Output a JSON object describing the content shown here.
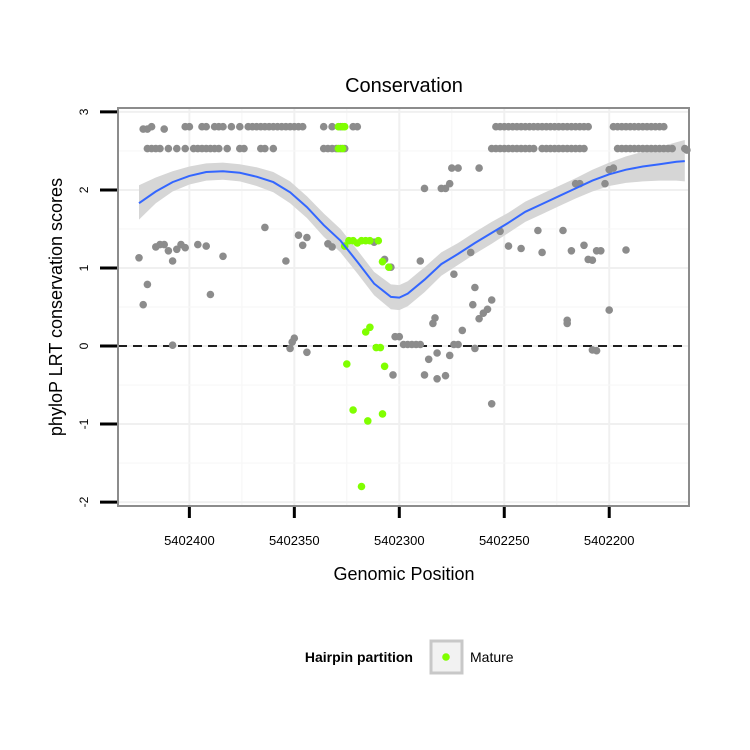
{
  "chart_data": {
    "type": "scatter",
    "title": "Conservation",
    "xlabel": "Genomic Position",
    "ylabel": "phyloP LRT conservation scores",
    "x_reversed": true,
    "xlim": [
      5402162,
      5402434
    ],
    "ylim": [
      -2.05,
      3.05
    ],
    "x_ticks": [
      5402400,
      5402350,
      5402300,
      5402250,
      5402200
    ],
    "y_ticks": [
      -2,
      -1,
      0,
      1,
      2,
      3
    ],
    "grid": true,
    "reference_line": {
      "y": 0,
      "style": "dashed"
    },
    "legend": {
      "title": "Hairpin partition",
      "position": "bottom",
      "entries": [
        {
          "label": "Mature",
          "color": "#80ff00"
        }
      ]
    },
    "colors": {
      "other": "#8c8c8c",
      "mature": "#80ff00",
      "smooth": "#3366ff",
      "ribbon": "#d6d6d6"
    },
    "series": [
      {
        "name": "Other",
        "points": [
          [
            5402422,
            2.78
          ],
          [
            5402420,
            2.78
          ],
          [
            5402418,
            2.81
          ],
          [
            5402412,
            2.78
          ],
          [
            5402402,
            2.81
          ],
          [
            5402400,
            2.81
          ],
          [
            5402394,
            2.81
          ],
          [
            5402392,
            2.81
          ],
          [
            5402388,
            2.81
          ],
          [
            5402386,
            2.81
          ],
          [
            5402384,
            2.81
          ],
          [
            5402380,
            2.81
          ],
          [
            5402376,
            2.81
          ],
          [
            5402372,
            2.81
          ],
          [
            5402370,
            2.81
          ],
          [
            5402368,
            2.81
          ],
          [
            5402366,
            2.81
          ],
          [
            5402364,
            2.81
          ],
          [
            5402362,
            2.81
          ],
          [
            5402360,
            2.81
          ],
          [
            5402358,
            2.81
          ],
          [
            5402356,
            2.81
          ],
          [
            5402354,
            2.81
          ],
          [
            5402352,
            2.81
          ],
          [
            5402350,
            2.81
          ],
          [
            5402348,
            2.81
          ],
          [
            5402346,
            2.81
          ],
          [
            5402336,
            2.81
          ],
          [
            5402332,
            2.81
          ],
          [
            5402328,
            2.81
          ],
          [
            5402322,
            2.81
          ],
          [
            5402320,
            2.81
          ],
          [
            5402420,
            2.53
          ],
          [
            5402418,
            2.53
          ],
          [
            5402416,
            2.53
          ],
          [
            5402414,
            2.53
          ],
          [
            5402410,
            2.53
          ],
          [
            5402406,
            2.53
          ],
          [
            5402402,
            2.53
          ],
          [
            5402398,
            2.53
          ],
          [
            5402396,
            2.53
          ],
          [
            5402394,
            2.53
          ],
          [
            5402392,
            2.53
          ],
          [
            5402390,
            2.53
          ],
          [
            5402388,
            2.53
          ],
          [
            5402386,
            2.53
          ],
          [
            5402382,
            2.53
          ],
          [
            5402376,
            2.53
          ],
          [
            5402374,
            2.53
          ],
          [
            5402366,
            2.53
          ],
          [
            5402364,
            2.53
          ],
          [
            5402360,
            2.53
          ],
          [
            5402336,
            2.53
          ],
          [
            5402334,
            2.53
          ],
          [
            5402332,
            2.53
          ],
          [
            5402330,
            2.53
          ],
          [
            5402328,
            2.53
          ],
          [
            5402326,
            2.53
          ],
          [
            5402424,
            1.13
          ],
          [
            5402422,
            0.53
          ],
          [
            5402420,
            0.79
          ],
          [
            5402416,
            1.27
          ],
          [
            5402414,
            1.3
          ],
          [
            5402412,
            1.3
          ],
          [
            5402410,
            1.22
          ],
          [
            5402408,
            1.09
          ],
          [
            5402408,
            0.01
          ],
          [
            5402406,
            1.24
          ],
          [
            5402404,
            1.3
          ],
          [
            5402402,
            1.26
          ],
          [
            5402396,
            1.3
          ],
          [
            5402392,
            1.28
          ],
          [
            5402390,
            0.66
          ],
          [
            5402384,
            1.15
          ],
          [
            5402364,
            1.52
          ],
          [
            5402354,
            1.09
          ],
          [
            5402352,
            -0.03
          ],
          [
            5402351,
            0.05
          ],
          [
            5402350,
            0.1
          ],
          [
            5402348,
            1.42
          ],
          [
            5402346,
            1.29
          ],
          [
            5402344,
            1.39
          ],
          [
            5402344,
            -0.08
          ],
          [
            5402334,
            1.31
          ],
          [
            5402332,
            1.27
          ],
          [
            5402312,
            1.33
          ],
          [
            5402307,
            1.11
          ],
          [
            5402304,
            1.01
          ],
          [
            5402302,
            0.12
          ],
          [
            5402300,
            0.12
          ],
          [
            5402298,
            0.02
          ],
          [
            5402296,
            0.02
          ],
          [
            5402294,
            0.02
          ],
          [
            5402292,
            0.02
          ],
          [
            5402290,
            0.02
          ],
          [
            5402303,
            -0.37
          ],
          [
            5402290,
            1.09
          ],
          [
            5402288,
            -0.37
          ],
          [
            5402286,
            -0.17
          ],
          [
            5402284,
            0.29
          ],
          [
            5402283,
            0.36
          ],
          [
            5402282,
            -0.09
          ],
          [
            5402282,
            -0.42
          ],
          [
            5402278,
            -0.38
          ],
          [
            5402276,
            -0.12
          ],
          [
            5402274,
            0.02
          ],
          [
            5402272,
            0.02
          ],
          [
            5402288,
            2.02
          ],
          [
            5402280,
            2.02
          ],
          [
            5402278,
            2.02
          ],
          [
            5402276,
            2.08
          ],
          [
            5402274,
            0.92
          ],
          [
            5402270,
            0.2
          ],
          [
            5402266,
            1.2
          ],
          [
            5402265,
            0.53
          ],
          [
            5402264,
            0.75
          ],
          [
            5402264,
            -0.03
          ],
          [
            5402262,
            0.35
          ],
          [
            5402260,
            0.42
          ],
          [
            5402258,
            0.47
          ],
          [
            5402256,
            0.59
          ],
          [
            5402256,
            -0.74
          ],
          [
            5402252,
            1.47
          ],
          [
            5402275,
            2.28
          ],
          [
            5402272,
            2.28
          ],
          [
            5402262,
            2.28
          ],
          [
            5402254,
            2.81
          ],
          [
            5402252,
            2.81
          ],
          [
            5402250,
            2.81
          ],
          [
            5402248,
            2.81
          ],
          [
            5402246,
            2.81
          ],
          [
            5402244,
            2.81
          ],
          [
            5402242,
            2.81
          ],
          [
            5402240,
            2.81
          ],
          [
            5402238,
            2.81
          ],
          [
            5402236,
            2.81
          ],
          [
            5402234,
            2.81
          ],
          [
            5402232,
            2.81
          ],
          [
            5402230,
            2.81
          ],
          [
            5402228,
            2.81
          ],
          [
            5402226,
            2.81
          ],
          [
            5402224,
            2.81
          ],
          [
            5402222,
            2.81
          ],
          [
            5402220,
            2.81
          ],
          [
            5402218,
            2.81
          ],
          [
            5402216,
            2.81
          ],
          [
            5402214,
            2.81
          ],
          [
            5402212,
            2.81
          ],
          [
            5402210,
            2.81
          ],
          [
            5402256,
            2.53
          ],
          [
            5402254,
            2.53
          ],
          [
            5402252,
            2.53
          ],
          [
            5402250,
            2.53
          ],
          [
            5402248,
            2.53
          ],
          [
            5402246,
            2.53
          ],
          [
            5402244,
            2.53
          ],
          [
            5402242,
            2.53
          ],
          [
            5402240,
            2.53
          ],
          [
            5402238,
            2.53
          ],
          [
            5402236,
            2.53
          ],
          [
            5402232,
            2.53
          ],
          [
            5402230,
            2.53
          ],
          [
            5402228,
            2.53
          ],
          [
            5402226,
            2.53
          ],
          [
            5402224,
            2.53
          ],
          [
            5402222,
            2.53
          ],
          [
            5402220,
            2.53
          ],
          [
            5402218,
            2.53
          ],
          [
            5402216,
            2.53
          ],
          [
            5402214,
            2.53
          ],
          [
            5402212,
            2.53
          ],
          [
            5402248,
            1.28
          ],
          [
            5402242,
            1.25
          ],
          [
            5402234,
            1.48
          ],
          [
            5402232,
            1.2
          ],
          [
            5402222,
            1.48
          ],
          [
            5402220,
            0.29
          ],
          [
            5402220,
            0.33
          ],
          [
            5402218,
            1.22
          ],
          [
            5402216,
            2.08
          ],
          [
            5402214,
            2.08
          ],
          [
            5402212,
            1.29
          ],
          [
            5402210,
            1.11
          ],
          [
            5402208,
            1.1
          ],
          [
            5402206,
            1.22
          ],
          [
            5402208,
            -0.05
          ],
          [
            5402206,
            -0.06
          ],
          [
            5402204,
            1.22
          ],
          [
            5402202,
            2.08
          ],
          [
            5402200,
            0.46
          ],
          [
            5402200,
            2.26
          ],
          [
            5402198,
            2.28
          ],
          [
            5402192,
            1.23
          ],
          [
            5402198,
            2.81
          ],
          [
            5402196,
            2.81
          ],
          [
            5402194,
            2.81
          ],
          [
            5402192,
            2.81
          ],
          [
            5402190,
            2.81
          ],
          [
            5402188,
            2.81
          ],
          [
            5402186,
            2.81
          ],
          [
            5402184,
            2.81
          ],
          [
            5402182,
            2.81
          ],
          [
            5402180,
            2.81
          ],
          [
            5402178,
            2.81
          ],
          [
            5402176,
            2.81
          ],
          [
            5402174,
            2.81
          ],
          [
            5402196,
            2.53
          ],
          [
            5402194,
            2.53
          ],
          [
            5402192,
            2.53
          ],
          [
            5402190,
            2.53
          ],
          [
            5402188,
            2.53
          ],
          [
            5402186,
            2.53
          ],
          [
            5402184,
            2.53
          ],
          [
            5402182,
            2.53
          ],
          [
            5402180,
            2.53
          ],
          [
            5402178,
            2.53
          ],
          [
            5402176,
            2.53
          ],
          [
            5402174,
            2.53
          ],
          [
            5402172,
            2.53
          ],
          [
            5402170,
            2.53
          ],
          [
            5402164,
            2.53
          ],
          [
            5402163,
            2.51
          ]
        ]
      },
      {
        "name": "Mature",
        "points": [
          [
            5402329,
            2.81
          ],
          [
            5402327,
            2.81
          ],
          [
            5402326,
            2.81
          ],
          [
            5402329,
            2.53
          ],
          [
            5402327,
            2.53
          ],
          [
            5402326,
            1.28
          ],
          [
            5402324,
            1.35
          ],
          [
            5402322,
            1.35
          ],
          [
            5402320,
            1.32
          ],
          [
            5402318,
            1.35
          ],
          [
            5402316,
            1.35
          ],
          [
            5402314,
            1.35
          ],
          [
            5402310,
            1.35
          ],
          [
            5402308,
            1.08
          ],
          [
            5402305,
            1.01
          ],
          [
            5402316,
            0.18
          ],
          [
            5402314,
            0.24
          ],
          [
            5402311,
            -0.02
          ],
          [
            5402309,
            -0.02
          ],
          [
            5402325,
            -0.23
          ],
          [
            5402307,
            -0.26
          ],
          [
            5402322,
            -0.82
          ],
          [
            5402308,
            -0.87
          ],
          [
            5402315,
            -0.96
          ],
          [
            5402318,
            -1.8
          ]
        ]
      }
    ],
    "smooth": {
      "x": [
        5402424,
        5402416,
        5402408,
        5402400,
        5402392,
        5402384,
        5402376,
        5402368,
        5402360,
        5402352,
        5402344,
        5402336,
        5402328,
        5402320,
        5402312,
        5402304,
        5402300,
        5402296,
        5402288,
        5402280,
        5402272,
        5402264,
        5402256,
        5402248,
        5402240,
        5402232,
        5402224,
        5402216,
        5402208,
        5402200,
        5402192,
        5402184,
        5402176,
        5402168,
        5402164
      ],
      "y": [
        1.83,
        1.98,
        2.1,
        2.18,
        2.23,
        2.24,
        2.22,
        2.17,
        2.1,
        1.97,
        1.78,
        1.55,
        1.35,
        1.08,
        0.8,
        0.63,
        0.62,
        0.67,
        0.85,
        1.05,
        1.18,
        1.32,
        1.45,
        1.58,
        1.72,
        1.82,
        1.92,
        2.02,
        2.12,
        2.2,
        2.26,
        2.3,
        2.33,
        2.36,
        2.37
      ],
      "lower": [
        1.62,
        1.83,
        1.98,
        2.07,
        2.12,
        2.13,
        2.11,
        2.05,
        1.97,
        1.83,
        1.64,
        1.4,
        1.2,
        0.93,
        0.65,
        0.47,
        0.46,
        0.51,
        0.69,
        0.9,
        1.04,
        1.18,
        1.31,
        1.45,
        1.59,
        1.69,
        1.79,
        1.89,
        1.98,
        2.05,
        2.09,
        2.11,
        2.12,
        2.12,
        2.11
      ],
      "upper": [
        2.06,
        2.16,
        2.24,
        2.3,
        2.34,
        2.35,
        2.33,
        2.29,
        2.23,
        2.11,
        1.92,
        1.7,
        1.5,
        1.23,
        0.95,
        0.79,
        0.78,
        0.83,
        1.01,
        1.2,
        1.32,
        1.46,
        1.59,
        1.71,
        1.85,
        1.95,
        2.05,
        2.15,
        2.26,
        2.35,
        2.43,
        2.49,
        2.55,
        2.61,
        2.64
      ]
    }
  }
}
